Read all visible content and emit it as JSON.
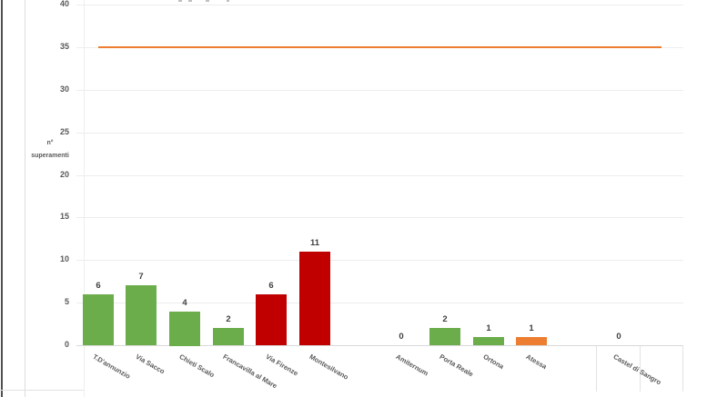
{
  "axis": {
    "ylabel_line1": "n°",
    "ylabel_line2": "superamenti",
    "yticks": [
      40,
      35,
      30,
      25,
      20,
      15,
      10,
      5,
      0
    ]
  },
  "chart_data": {
    "type": "bar",
    "title": "",
    "ylabel": "n° superamenti",
    "ylim": [
      0,
      40
    ],
    "ytick_step": 5,
    "grid": true,
    "legend": "none",
    "limit_line": {
      "value": 35,
      "color": "#ED7D31"
    },
    "palette": {
      "green": "#6AAD4A",
      "red": "#C00000",
      "orange": "#ED7D31"
    },
    "categories": [
      "T.D'annunzio",
      "Via Sacco",
      "Chieti Scalo",
      "Francavilla al Mare",
      "Via Firenze",
      "Montesilvano",
      "",
      "Amiternum",
      "Porta Reale",
      "Ortona",
      "Atessa",
      "",
      "Castel di Sangro",
      ""
    ],
    "values": [
      6,
      7,
      4,
      2,
      6,
      11,
      null,
      0,
      2,
      1,
      1,
      null,
      0,
      null
    ],
    "bar_colors": [
      "green",
      "green",
      "green",
      "green",
      "red",
      "red",
      null,
      "green",
      "green",
      "green",
      "orange",
      null,
      "green",
      null
    ]
  }
}
